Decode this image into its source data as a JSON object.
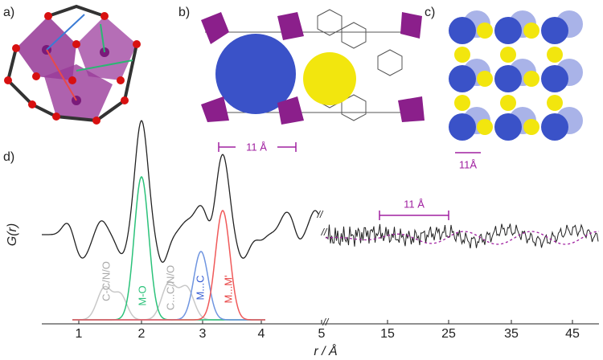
{
  "panels": {
    "a": {
      "label": "a)"
    },
    "b": {
      "label": "b)",
      "scale": "11 Å"
    },
    "c": {
      "label": "c)",
      "scale": "11Å"
    },
    "d": {
      "label": "d)",
      "y_label": "G(r)",
      "x_label": "r / Å",
      "x_ticks": [
        "1",
        "2",
        "3",
        "4",
        "5",
        "15",
        "25",
        "35",
        "45"
      ],
      "peak_labels": [
        "C-C/N/O",
        "M-O",
        "C...C/N/O",
        "M...C",
        "M...M'"
      ],
      "scale": "11 Å",
      "breaks": [
        "//",
        "//",
        "//"
      ]
    }
  }
}
